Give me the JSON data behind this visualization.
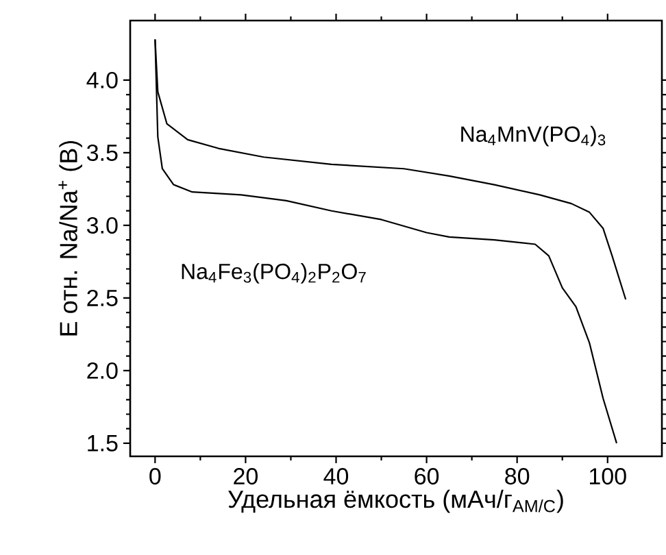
{
  "chart_data": {
    "type": "line",
    "xlabel": "Удельная ёмкость (мАч/г$_{AM/C}$)",
    "ylabel": "E отн. Na/Na$^{+}$ (В)",
    "xlim": [
      -5.5,
      112
    ],
    "ylim": [
      1.41,
      4.41
    ],
    "xticks": [
      0,
      20,
      40,
      60,
      80,
      100
    ],
    "yticks": [
      {
        "value": 1.5,
        "label": "1.5"
      },
      {
        "value": 2.0,
        "label": "2.0"
      },
      {
        "value": 2.5,
        "label": "2.5"
      },
      {
        "value": 3.0,
        "label": "3.0"
      },
      {
        "value": 3.5,
        "label": "3.5"
      },
      {
        "value": 4.0,
        "label": "4.0"
      }
    ],
    "grid": false,
    "legend": false,
    "marker": "none",
    "line_style": "solid",
    "series": [
      {
        "name": "Na$_{4}$MnV(PO$_{4}$)$_{3}$",
        "color": "#000000",
        "x": [
          0,
          0.6,
          2.6,
          7.2,
          14,
          24,
          39,
          55,
          65,
          75,
          85,
          92,
          96,
          99,
          101,
          104
        ],
        "values": [
          4.28,
          3.92,
          3.7,
          3.59,
          3.53,
          3.47,
          3.42,
          3.39,
          3.34,
          3.28,
          3.21,
          3.15,
          3.09,
          2.98,
          2.79,
          2.49
        ]
      },
      {
        "name": "Na$_{4}$Fe$_{3}$(PO$_{4}$)$_{2}$P$_{2}$O$_{7}$",
        "color": "#000000",
        "x": [
          0,
          0.6,
          1.6,
          4.1,
          8.2,
          19,
          29,
          39,
          50,
          60,
          65,
          75,
          84,
          87,
          90,
          93,
          96,
          99,
          102
        ],
        "values": [
          4.28,
          3.61,
          3.39,
          3.28,
          3.23,
          3.21,
          3.17,
          3.1,
          3.04,
          2.95,
          2.92,
          2.9,
          2.87,
          2.79,
          2.57,
          2.44,
          2.19,
          1.81,
          1.5
        ]
      }
    ]
  }
}
